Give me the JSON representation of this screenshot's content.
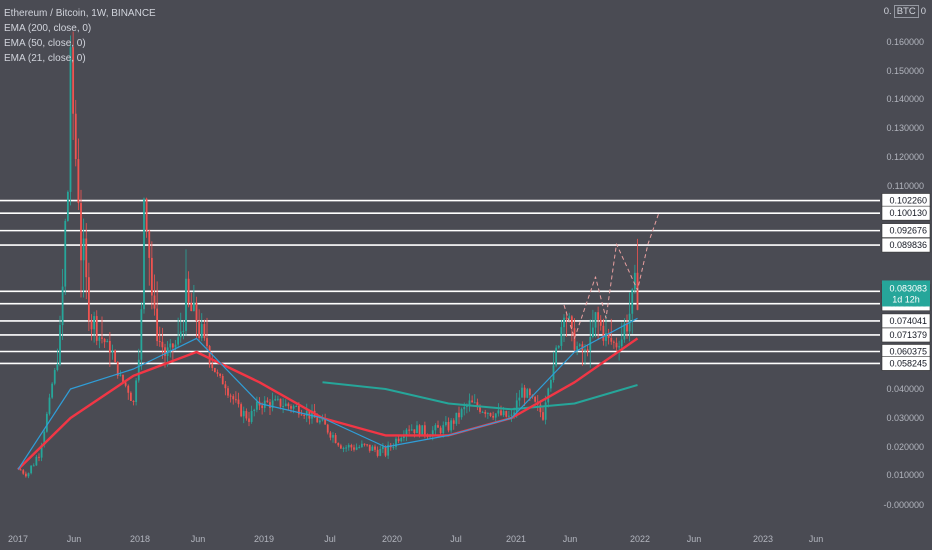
{
  "legend": {
    "symbol": "Ethereum / Bitcoin, 1W, BINANCE",
    "ema200": "EMA (200, close, 0)",
    "ema50": "EMA (50, close, 0)",
    "ema21": "EMA (21, close, 0)"
  },
  "scale_unit": {
    "prefix": "0.",
    "currency": "BTC",
    "suffix": "0"
  },
  "colors": {
    "background": "#4a4b53",
    "up": "#26a69a",
    "down": "#ef5350",
    "ema200": "#26a69a",
    "ema50": "#f23645",
    "ema21": "#2f9ed8",
    "level_line": "#ffffff",
    "projection": "#e9a0a0",
    "axis_text": "#b2b5be",
    "last_price_bg": "#26a69a"
  },
  "chart_data": {
    "type": "candlestick",
    "title": "Ethereum / Bitcoin, 1W, BINANCE",
    "y_axis_ticks": [
      "0.160000",
      "0.150000",
      "0.140000",
      "0.130000",
      "0.120000",
      "0.110000",
      "0.040000",
      "0.030000",
      "0.020000",
      "0.010000",
      "-0.000000"
    ],
    "x_axis_ticks": [
      "2017",
      "Jun",
      "2018",
      "Jun",
      "2019",
      "Jul",
      "2020",
      "Jul",
      "2021",
      "Jun",
      "2022",
      "Jun",
      "2023",
      "Jun"
    ],
    "ylim": [
      0,
      0.165
    ],
    "price_levels": [
      "0.102260",
      "0.100130",
      "0.092676",
      "0.089836",
      "0.082737",
      "0.080253",
      "0.074041",
      "0.071379",
      "0.060375",
      "0.058245"
    ],
    "last_price": "0.083083",
    "countdown": "1d 12h",
    "close_path": [
      [
        "2017-01",
        0.012
      ],
      [
        "2017-02",
        0.011
      ],
      [
        "2017-03",
        0.018
      ],
      [
        "2017-04",
        0.035
      ],
      [
        "2017-05",
        0.07
      ],
      [
        "2017-06",
        0.12
      ],
      [
        "2017-06",
        0.15
      ],
      [
        "2017-07",
        0.09
      ],
      [
        "2017-08",
        0.075
      ],
      [
        "2017-09",
        0.07
      ],
      [
        "2017-10",
        0.06
      ],
      [
        "2017-11",
        0.045
      ],
      [
        "2017-12",
        0.035
      ],
      [
        "2018-01",
        0.09
      ],
      [
        "2018-01",
        0.105
      ],
      [
        "2018-02",
        0.075
      ],
      [
        "2018-03",
        0.06
      ],
      [
        "2018-04",
        0.065
      ],
      [
        "2018-05",
        0.08
      ],
      [
        "2018-06",
        0.075
      ],
      [
        "2018-07",
        0.065
      ],
      [
        "2018-08",
        0.05
      ],
      [
        "2018-09",
        0.04
      ],
      [
        "2018-10",
        0.033
      ],
      [
        "2018-11",
        0.03
      ],
      [
        "2018-12",
        0.035
      ],
      [
        "2019-02",
        0.035
      ],
      [
        "2019-04",
        0.033
      ],
      [
        "2019-06",
        0.028
      ],
      [
        "2019-08",
        0.02
      ],
      [
        "2019-10",
        0.02
      ],
      [
        "2019-12",
        0.018
      ],
      [
        "2020-02",
        0.027
      ],
      [
        "2020-04",
        0.025
      ],
      [
        "2020-06",
        0.027
      ],
      [
        "2020-08",
        0.035
      ],
      [
        "2020-10",
        0.032
      ],
      [
        "2020-12",
        0.03
      ],
      [
        "2021-01",
        0.04
      ],
      [
        "2021-03",
        0.031
      ],
      [
        "2021-04",
        0.055
      ],
      [
        "2021-05",
        0.08
      ],
      [
        "2021-06",
        0.065
      ],
      [
        "2021-07",
        0.06
      ],
      [
        "2021-08",
        0.075
      ],
      [
        "2021-09",
        0.07
      ],
      [
        "2021-10",
        0.065
      ],
      [
        "2021-11",
        0.075
      ],
      [
        "2021-12",
        0.083
      ]
    ],
    "ema200_path": [
      [
        "2019-06",
        0.045
      ],
      [
        "2019-12",
        0.04
      ],
      [
        "2020-06",
        0.035
      ],
      [
        "2020-12",
        0.033
      ],
      [
        "2021-06",
        0.035
      ],
      [
        "2021-12",
        0.043
      ]
    ],
    "ema50_path": [
      [
        "2017-01",
        0.012
      ],
      [
        "2017-06",
        0.03
      ],
      [
        "2017-12",
        0.05
      ],
      [
        "2018-06",
        0.06
      ],
      [
        "2018-12",
        0.045
      ],
      [
        "2019-06",
        0.03
      ],
      [
        "2019-12",
        0.024
      ],
      [
        "2020-06",
        0.024
      ],
      [
        "2020-12",
        0.03
      ],
      [
        "2021-06",
        0.045
      ],
      [
        "2021-12",
        0.07
      ]
    ],
    "ema21_path": [
      [
        "2017-01",
        0.012
      ],
      [
        "2017-06",
        0.04
      ],
      [
        "2017-12",
        0.055
      ],
      [
        "2018-06",
        0.07
      ],
      [
        "2018-12",
        0.035
      ],
      [
        "2019-06",
        0.03
      ],
      [
        "2019-12",
        0.02
      ],
      [
        "2020-06",
        0.024
      ],
      [
        "2020-12",
        0.03
      ],
      [
        "2021-06",
        0.06
      ],
      [
        "2021-12",
        0.075
      ]
    ],
    "projection_path": [
      [
        "2021-05",
        0.08
      ],
      [
        "2021-06",
        0.07
      ],
      [
        "2021-08",
        0.085
      ],
      [
        "2021-09",
        0.075
      ],
      [
        "2021-10",
        0.09
      ],
      [
        "2021-12",
        0.083
      ],
      [
        "2022-01",
        0.09
      ],
      [
        "2022-02",
        0.1
      ]
    ]
  }
}
